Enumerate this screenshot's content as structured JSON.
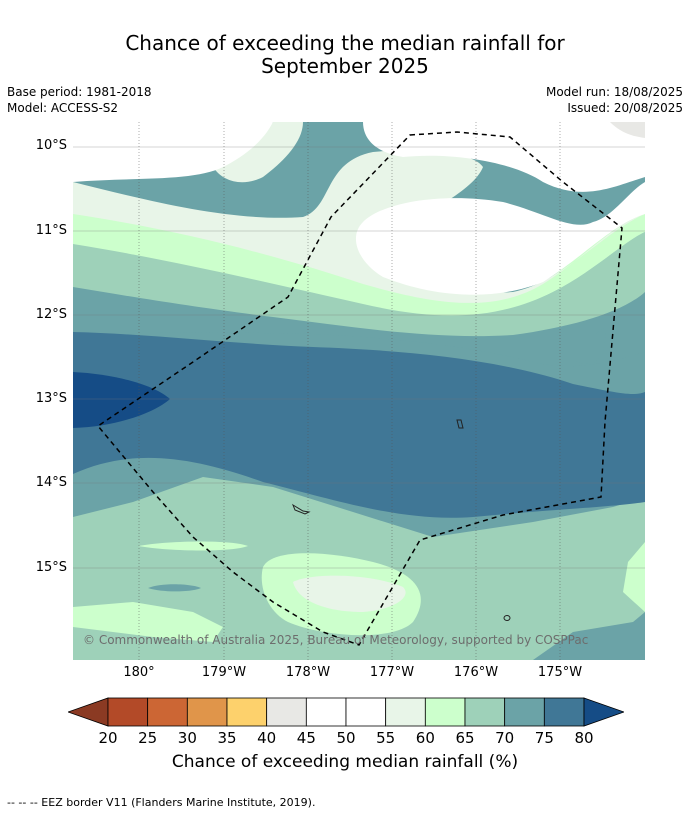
{
  "title": {
    "line1": "Chance of exceeding the median rainfall for",
    "line2": "September 2025"
  },
  "meta": {
    "base_period": "Base period: 1981-2018",
    "model": "Model: ACCESS-S2",
    "model_run": "Model run: 18/08/2025",
    "issued": "Issued: 20/08/2025"
  },
  "map": {
    "lat_labels": [
      "10°S",
      "11°S",
      "12°S",
      "13°S",
      "14°S",
      "15°S"
    ],
    "lon_labels": [
      "180°",
      "179°W",
      "178°W",
      "177°W",
      "176°W",
      "175°W"
    ],
    "copyright": "© Commonwealth of Australia 2025, Bureau of Meteorology, supported by COSPPac"
  },
  "colorbar": {
    "ticks": [
      "20",
      "25",
      "30",
      "35",
      "40",
      "45",
      "50",
      "55",
      "60",
      "65",
      "70",
      "75",
      "80"
    ],
    "colors": [
      "#8b3a23",
      "#b34a28",
      "#cc6634",
      "#e0954a",
      "#fdd16c",
      "#e8e8e5",
      "#ffffff",
      "#ffffff",
      "#e8f5e8",
      "#ccffcc",
      "#9ed1b9",
      "#6ba3a7",
      "#407796",
      "#154c86"
    ],
    "label": "Chance of exceeding median rainfall (%)"
  },
  "footnote": "--  --  -- EEZ border V11 (Flanders Marine Institute, 2019)."
}
